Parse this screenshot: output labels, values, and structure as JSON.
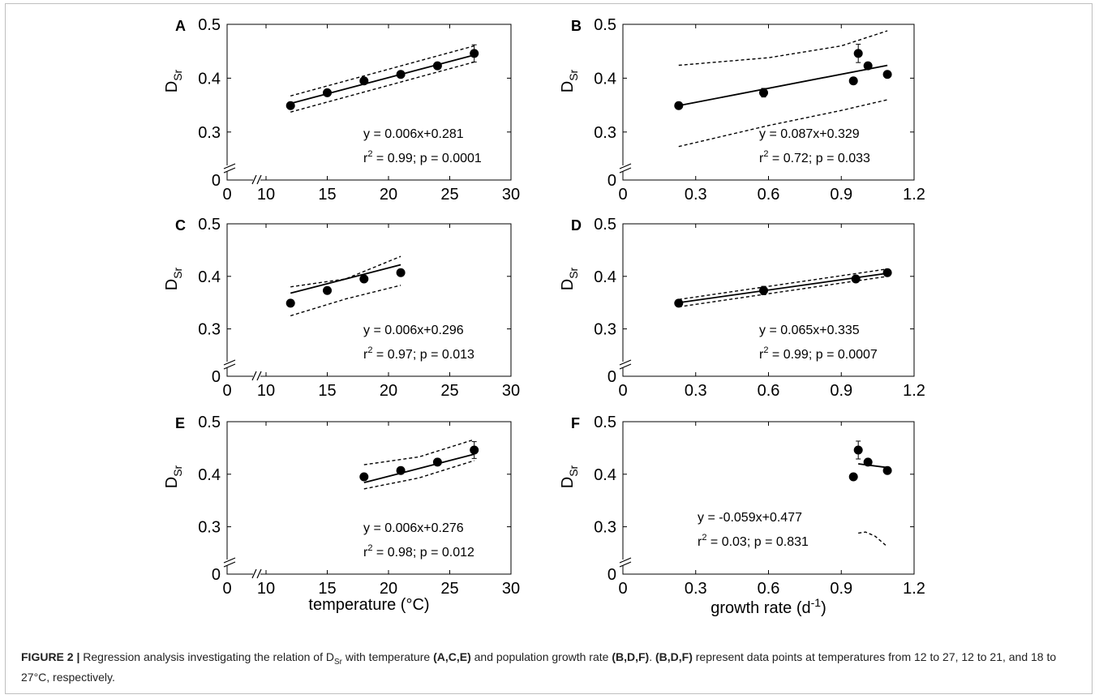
{
  "caption": {
    "label": "FIGURE 2 |",
    "segments": [
      {
        "t": " Regression analysis investigating the relation of D",
        "b": false
      },
      {
        "t": "Sr",
        "b": false,
        "sub": true
      },
      {
        "t": " with temperature ",
        "b": false
      },
      {
        "t": "(A,C,E)",
        "b": true
      },
      {
        "t": " and population growth rate ",
        "b": false
      },
      {
        "t": "(B,D,F)",
        "b": true
      },
      {
        "t": ". ",
        "b": false
      },
      {
        "t": "(B,D,F)",
        "b": true
      },
      {
        "t": " represent data points at temperatures from 12 to 27, 12 to 21, and 18 to 27°C, respectively.",
        "b": false
      }
    ]
  },
  "axis_text": {
    "ylabel_main": "D",
    "ylabel_sub": "Sr",
    "xlabel_temperature": "temperature (°C)",
    "xlabel_growth_main": "growth rate (d",
    "xlabel_growth_sup": "-1",
    "xlabel_growth_end": ")"
  },
  "chart_data": [
    {
      "panel": "A",
      "type": "scatter",
      "xaxis": "temperature",
      "xlim": [
        0,
        30
      ],
      "ylim": [
        0,
        0.5
      ],
      "xticks": [
        0,
        10,
        15,
        20,
        25,
        30
      ],
      "yticks": [
        0,
        0.3,
        0.4,
        0.5
      ],
      "x": [
        12,
        15,
        18,
        21,
        24,
        27
      ],
      "y": [
        0.349,
        0.373,
        0.395,
        0.407,
        0.423,
        0.446
      ],
      "err": [
        0,
        0.004,
        0,
        0,
        0,
        0.016
      ],
      "fit": {
        "slope": 0.006,
        "intercept": 0.281,
        "xrange": [
          12,
          27
        ]
      },
      "ci": {
        "upper": [
          [
            12,
            0.367
          ],
          [
            27,
            0.46
          ]
        ],
        "lower": [
          [
            12,
            0.337
          ],
          [
            27,
            0.43
          ]
        ]
      },
      "eq1": "y = 0.006x+0.281",
      "eq2_r": "r",
      "eq2_sup": "2",
      "eq2_rest": " = 0.99; p = 0.0001"
    },
    {
      "panel": "B",
      "type": "scatter",
      "xaxis": "growth",
      "xlim": [
        0,
        1.2
      ],
      "ylim": [
        0,
        0.5
      ],
      "xticks": [
        0,
        0.3,
        0.6,
        0.9,
        1.2
      ],
      "yticks": [
        0,
        0.3,
        0.4,
        0.5
      ],
      "x": [
        0.23,
        0.58,
        0.95,
        0.97,
        1.01,
        1.09
      ],
      "y": [
        0.349,
        0.373,
        0.395,
        0.446,
        0.423,
        0.407
      ],
      "err": [
        0,
        0.008,
        0,
        0.017,
        0,
        0
      ],
      "fit": {
        "slope": 0.087,
        "intercept": 0.329,
        "xrange": [
          0.23,
          1.09
        ]
      },
      "ci": {
        "upper": [
          [
            0.23,
            0.424
          ],
          [
            0.6,
            0.438
          ],
          [
            0.9,
            0.46
          ],
          [
            1.09,
            0.488
          ]
        ],
        "lower": [
          [
            0.23,
            0.273
          ],
          [
            0.6,
            0.312
          ],
          [
            0.9,
            0.34
          ],
          [
            1.09,
            0.36
          ]
        ]
      },
      "eq1": "y = 0.087x+0.329",
      "eq2_r": "r",
      "eq2_sup": "2",
      "eq2_rest": " = 0.72; p = 0.033"
    },
    {
      "panel": "C",
      "type": "scatter",
      "xaxis": "temperature",
      "xlim": [
        0,
        30
      ],
      "ylim": [
        0,
        0.5
      ],
      "xticks": [
        0,
        10,
        15,
        20,
        25,
        30
      ],
      "yticks": [
        0,
        0.3,
        0.4,
        0.5
      ],
      "x": [
        12,
        15,
        18,
        21
      ],
      "y": [
        0.349,
        0.373,
        0.395,
        0.407
      ],
      "err": [
        0,
        0.004,
        0,
        0
      ],
      "fit": {
        "slope": 0.006,
        "intercept": 0.296,
        "xrange": [
          12,
          21
        ]
      },
      "ci": {
        "upper": [
          [
            12,
            0.38
          ],
          [
            16.5,
            0.395
          ],
          [
            21,
            0.438
          ]
        ],
        "lower": [
          [
            12,
            0.325
          ],
          [
            16.5,
            0.357
          ],
          [
            21,
            0.383
          ]
        ]
      },
      "eq1": "y = 0.006x+0.296",
      "eq2_r": "r",
      "eq2_sup": "2",
      "eq2_rest": " = 0.97; p = 0.013"
    },
    {
      "panel": "D",
      "type": "scatter",
      "xaxis": "growth",
      "xlim": [
        0,
        1.2
      ],
      "ylim": [
        0,
        0.5
      ],
      "xticks": [
        0,
        0.3,
        0.6,
        0.9,
        1.2
      ],
      "yticks": [
        0,
        0.3,
        0.4,
        0.5
      ],
      "x": [
        0.23,
        0.58,
        0.96,
        1.09
      ],
      "y": [
        0.349,
        0.373,
        0.395,
        0.407
      ],
      "err": [
        0,
        0.008,
        0,
        0
      ],
      "fit": {
        "slope": 0.065,
        "intercept": 0.335,
        "xrange": [
          0.23,
          1.09
        ]
      },
      "ci": {
        "upper": [
          [
            0.23,
            0.356
          ],
          [
            1.09,
            0.414
          ]
        ],
        "lower": [
          [
            0.23,
            0.342
          ],
          [
            1.09,
            0.4
          ]
        ]
      },
      "eq1": "y = 0.065x+0.335",
      "eq2_r": "r",
      "eq2_sup": "2",
      "eq2_rest": " = 0.99; p = 0.0007"
    },
    {
      "panel": "E",
      "type": "scatter",
      "xaxis": "temperature",
      "xlim": [
        0,
        30
      ],
      "ylim": [
        0,
        0.5
      ],
      "xticks": [
        0,
        10,
        15,
        20,
        25,
        30
      ],
      "yticks": [
        0,
        0.3,
        0.4,
        0.5
      ],
      "x": [
        18,
        21,
        24,
        27
      ],
      "y": [
        0.395,
        0.407,
        0.423,
        0.446
      ],
      "err": [
        0,
        0,
        0,
        0.016
      ],
      "fit": {
        "slope": 0.006,
        "intercept": 0.276,
        "xrange": [
          18,
          27
        ]
      },
      "ci": {
        "upper": [
          [
            18,
            0.418
          ],
          [
            22.5,
            0.433
          ],
          [
            27,
            0.466
          ]
        ],
        "lower": [
          [
            18,
            0.372
          ],
          [
            22.5,
            0.393
          ],
          [
            27,
            0.426
          ]
        ]
      },
      "eq1": "y = 0.006x+0.276",
      "eq2_r": "r",
      "eq2_sup": "2",
      "eq2_rest": " = 0.98; p = 0.012"
    },
    {
      "panel": "F",
      "type": "scatter",
      "xaxis": "growth",
      "xlim": [
        0,
        1.2
      ],
      "ylim": [
        0,
        0.5
      ],
      "xticks": [
        0,
        0.3,
        0.6,
        0.9,
        1.2
      ],
      "yticks": [
        0,
        0.3,
        0.4,
        0.5
      ],
      "x": [
        0.95,
        0.97,
        1.01,
        1.09
      ],
      "y": [
        0.395,
        0.446,
        0.423,
        0.407
      ],
      "err": [
        0,
        0.017,
        0,
        0
      ],
      "fit": {
        "slope": -0.059,
        "intercept": 0.477,
        "xrange": [
          0.97,
          1.09
        ]
      },
      "ci": {
        "lower": [
          [
            0.97,
            0.288
          ],
          [
            1.0,
            0.29
          ],
          [
            1.04,
            0.282
          ],
          [
            1.09,
            0.262
          ]
        ]
      },
      "eq1": "y = -0.059x+0.477",
      "eq2_r": "r",
      "eq2_sup": "2",
      "eq2_rest": " = 0.03; p = 0.831"
    }
  ]
}
